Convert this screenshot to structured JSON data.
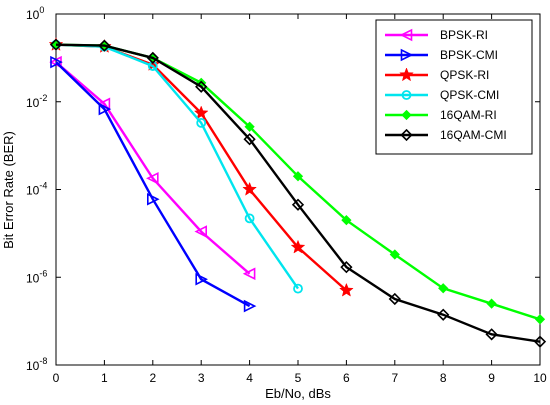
{
  "chart_data": {
    "type": "line",
    "title": "",
    "xlabel": "Eb/No, dBs",
    "ylabel": "Bit Error Rate (BER)",
    "xlim": [
      0,
      10
    ],
    "ylim": [
      1e-08,
      1
    ],
    "yscale": "log",
    "x_ticks": [
      "0",
      "1",
      "2",
      "3",
      "4",
      "5",
      "6",
      "7",
      "8",
      "9",
      "10"
    ],
    "y_ticks": [
      {
        "base": "10",
        "exp": "0",
        "value": 1
      },
      {
        "base": "10",
        "exp": "-2",
        "value": 0.01
      },
      {
        "base": "10",
        "exp": "-4",
        "value": 0.0001
      },
      {
        "base": "10",
        "exp": "-6",
        "value": 1e-06
      },
      {
        "base": "10",
        "exp": "-8",
        "value": 1e-08
      }
    ],
    "grid": false,
    "legend_position": "top-right",
    "series": [
      {
        "name": "BPSK-RI",
        "color": "#ff00ff",
        "marker": "triangle-left",
        "x": [
          0,
          1,
          2,
          3,
          4
        ],
        "y": [
          0.08,
          0.009,
          0.00018,
          1.1e-05,
          1.2e-06
        ]
      },
      {
        "name": "BPSK-CMI",
        "color": "#0000ff",
        "marker": "triangle-right",
        "x": [
          0,
          1,
          2,
          3,
          4
        ],
        "y": [
          0.08,
          0.0068,
          6e-05,
          9e-07,
          2.2e-07
        ]
      },
      {
        "name": "QPSK-RI",
        "color": "#ff0000",
        "marker": "star",
        "x": [
          0,
          1,
          2,
          3,
          4,
          5,
          6
        ],
        "y": [
          0.2,
          0.18,
          0.07,
          0.0055,
          0.0001,
          4.8e-06,
          5e-07
        ]
      },
      {
        "name": "QPSK-CMI",
        "color": "#00e5ee",
        "marker": "circle",
        "x": [
          0,
          1,
          2,
          3,
          4,
          5
        ],
        "y": [
          0.2,
          0.18,
          0.065,
          0.0033,
          2.2e-05,
          5.5e-07
        ]
      },
      {
        "name": "16QAM-RI",
        "color": "#00ff00",
        "marker": "diamond-filled",
        "x": [
          0,
          1,
          2,
          3,
          4,
          5,
          6,
          7,
          8,
          9,
          10
        ],
        "y": [
          0.2,
          0.19,
          0.1,
          0.027,
          0.0027,
          0.0002,
          2e-05,
          3.3e-06,
          5.6e-07,
          2.5e-07,
          1.1e-07
        ]
      },
      {
        "name": "16QAM-CMI",
        "color": "#000000",
        "marker": "diamond",
        "x": [
          0,
          1,
          2,
          3,
          4,
          5,
          6,
          7,
          8,
          9,
          10
        ],
        "y": [
          0.2,
          0.19,
          0.1,
          0.022,
          0.0014,
          4.5e-05,
          1.7e-06,
          3.2e-07,
          1.4e-07,
          5e-08,
          3.4e-08
        ]
      }
    ]
  }
}
